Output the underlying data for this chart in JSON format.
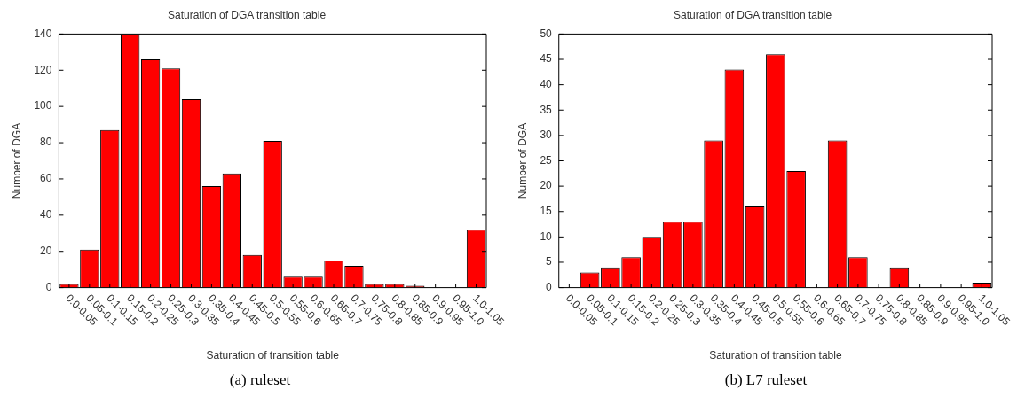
{
  "chart_data": [
    {
      "type": "bar",
      "title": "Saturation of DGA transition table",
      "xlabel": "Saturation of transition table",
      "ylabel": "Number of DGA",
      "categories": [
        "0.0-0.05",
        "0.05-0.1",
        "0.1-0.15",
        "0.15-0.2",
        "0.2-0.25",
        "0.25-0.3",
        "0.3-0.35",
        "0.35-0.4",
        "0.4-0.45",
        "0.45-0.5",
        "0.5-0.55",
        "0.55-0.6",
        "0.6-0.65",
        "0.65-0.7",
        "0.7-0.75",
        "0.75-0.8",
        "0.8-0.85",
        "0.85-0.9",
        "0.9-0.95",
        "0.95-1.0",
        "1.0-1.05"
      ],
      "values": [
        2,
        21,
        87,
        140,
        126,
        121,
        104,
        56,
        63,
        18,
        81,
        6,
        6,
        15,
        12,
        2,
        2,
        1,
        0,
        0,
        32
      ],
      "color": "#ff0000",
      "ylim": [
        0,
        140
      ],
      "yticks": [
        0,
        20,
        40,
        60,
        80,
        100,
        120,
        140
      ],
      "annotations": [
        "(a) ruleset"
      ]
    },
    {
      "type": "bar",
      "title": "Saturation of DGA transition table",
      "xlabel": "Saturation of transition table",
      "ylabel": "Number of DGA",
      "categories": [
        "0.0-0.05",
        "0.05-0.1",
        "0.1-0.15",
        "0.15-0.2",
        "0.2-0.25",
        "0.25-0.3",
        "0.3-0.35",
        "0.35-0.4",
        "0.4-0.45",
        "0.45-0.5",
        "0.5-0.55",
        "0.55-0.6",
        "0.6-0.65",
        "0.65-0.7",
        "0.7-0.75",
        "0.75-0.8",
        "0.8-0.85",
        "0.85-0.9",
        "0.9-0.95",
        "0.95-1.0",
        "1.0-1.05"
      ],
      "values": [
        0,
        3,
        4,
        6,
        10,
        13,
        13,
        29,
        43,
        16,
        46,
        23,
        0,
        29,
        6,
        0,
        4,
        0,
        0,
        0,
        1
      ],
      "color": "#ff0000",
      "ylim": [
        0,
        50
      ],
      "yticks": [
        0,
        5,
        10,
        15,
        20,
        25,
        30,
        35,
        40,
        45,
        50
      ],
      "annotations": [
        "(b) L7 ruleset"
      ]
    }
  ]
}
